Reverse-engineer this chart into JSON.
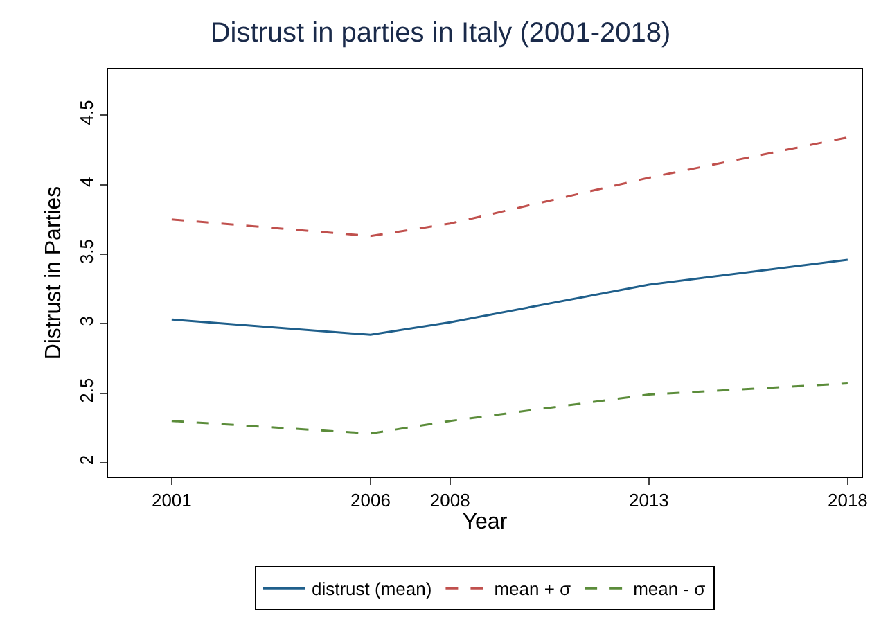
{
  "chart_data": {
    "type": "line",
    "title": "Distrust in parties in Italy (2001-2018)",
    "xlabel": "Year",
    "ylabel": "Distrust in Parties",
    "x": [
      2001,
      2006,
      2008,
      2013,
      2018
    ],
    "series": [
      {
        "name": "distrust (mean)",
        "color": "#1f5f8b",
        "line_style": "solid",
        "values": [
          3.03,
          2.92,
          3.01,
          3.28,
          3.46
        ]
      },
      {
        "name": "mean + σ",
        "color": "#c0504d",
        "line_style": "dashed",
        "values": [
          3.75,
          3.63,
          3.72,
          4.05,
          4.34
        ]
      },
      {
        "name": "mean - σ",
        "color": "#5b8c3a",
        "line_style": "dashed",
        "values": [
          2.3,
          2.21,
          2.3,
          2.49,
          2.57
        ]
      }
    ],
    "xlim": [
      1999.4,
      2018.35
    ],
    "xticks": [
      2001,
      2006,
      2008,
      2013,
      2018
    ],
    "ylim": [
      1.9,
      4.83
    ],
    "yticks": [
      2,
      2.5,
      3,
      3.5,
      4,
      4.5
    ],
    "grid": false,
    "legend": "bottom",
    "marker": "none"
  }
}
